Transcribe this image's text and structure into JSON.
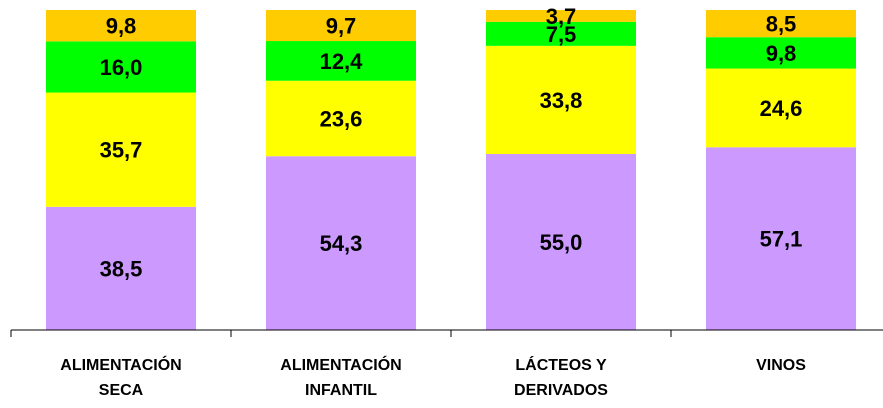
{
  "chart_data": {
    "type": "bar",
    "stacked": true,
    "normalized_percent": true,
    "categories": [
      [
        "ALIMENTACIÓN",
        "SECA"
      ],
      [
        "ALIMENTACIÓN",
        "INFANTIL"
      ],
      [
        "LÁCTEOS Y",
        "DERIVADOS"
      ],
      [
        "VINOS"
      ]
    ],
    "series": [
      {
        "color": "#cc99ff",
        "values": [
          38.5,
          54.3,
          55.0,
          57.1
        ],
        "labels": [
          "38,5",
          "54,3",
          "55,0",
          "57,1"
        ]
      },
      {
        "color": "#ffff00",
        "values": [
          35.7,
          23.6,
          33.8,
          24.6
        ],
        "labels": [
          "35,7",
          "23,6",
          "33,8",
          "24,6"
        ]
      },
      {
        "color": "#00ff00",
        "values": [
          16.0,
          12.4,
          7.5,
          9.8
        ],
        "labels": [
          "16,0",
          "12,4",
          "7,5",
          "9,8"
        ]
      },
      {
        "color": "#ffcc00",
        "values": [
          9.8,
          9.7,
          3.7,
          8.5
        ],
        "labels": [
          "9,8",
          "9,7",
          "3,7",
          "8,5"
        ]
      }
    ],
    "title": "",
    "xlabel": "",
    "ylabel": "",
    "ylim": [
      0,
      100
    ],
    "grid": false,
    "legend": "none",
    "x_axis_line_color": "#000000"
  }
}
